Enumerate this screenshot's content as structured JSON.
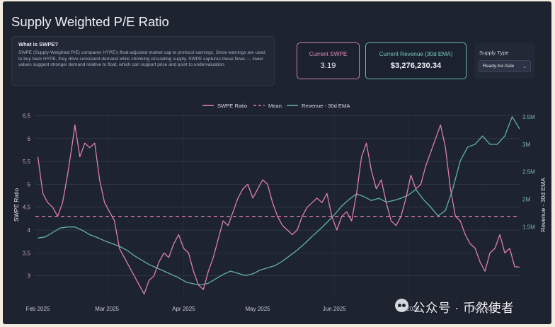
{
  "page": {
    "title": "Supply Weighted P/E Ratio"
  },
  "info": {
    "heading": "What is SWPE?",
    "body": "SWPE (Supply-Weighted P/E) compares HYPE's float-adjusted market cap to protocol earnings. Since earnings are used to buy back HYPE, they drive consistent demand while shrinking circulating supply. SWPE captures these flows — lower values suggest stronger demand relative to float, which can support price and point to undervaluation."
  },
  "cards": {
    "current_swpe_label": "Current SWPE",
    "current_swpe_value": "3.19",
    "current_revenue_label": "Current Revenue (30d EMA)",
    "current_revenue_value": "$3,276,230.34"
  },
  "supply_type": {
    "label": "Supply Type",
    "selected": "Ready-for-Sale"
  },
  "watermark": {
    "text": "公众号 · 币然使者"
  },
  "colors": {
    "swpe": "#de7fae",
    "mean": "#de7fae",
    "revenue": "#5fb3a7",
    "grid": "#3a4051",
    "tick_left": "#c9a2b8",
    "tick_right": "#79b8ad"
  },
  "chart_data": {
    "type": "line",
    "x_range": [
      "2025-01-31",
      "2025-08-15"
    ],
    "xticks": [
      {
        "label": "Feb 2025",
        "date": "2025-02-01"
      },
      {
        "label": "Mar 2025",
        "date": "2025-03-01"
      },
      {
        "label": "Apr 2025",
        "date": "2025-04-01"
      },
      {
        "label": "May 2025",
        "date": "2025-05-01"
      },
      {
        "label": "Jun 2025",
        "date": "2025-06-01"
      },
      {
        "label": "Jul 2025",
        "date": "2025-07-01"
      },
      {
        "label": "Aug 2025",
        "date": "2025-08-01"
      }
    ],
    "y_left": {
      "label": "SWPE Ratio",
      "range": [
        2.5,
        6.6
      ],
      "ticks": [
        3,
        3.5,
        4,
        4.5,
        5,
        5.5,
        6,
        6.5
      ]
    },
    "y_right": {
      "label": "Revenue - 30d EMA",
      "range": [
        200000,
        3600000
      ],
      "ticks": [
        {
          "v": 1500000,
          "label": "1.5M"
        },
        {
          "v": 2000000,
          "label": "2M"
        },
        {
          "v": 2500000,
          "label": "2.5M"
        },
        {
          "v": 3000000,
          "label": "3M"
        },
        {
          "v": 3500000,
          "label": "3.5M"
        }
      ]
    },
    "legend": {
      "placement": "top-center"
    },
    "grid": true,
    "mean": 4.3,
    "series": [
      {
        "name": "SWPE Ratio",
        "axis": "left",
        "points": [
          [
            "2025-02-01",
            5.6
          ],
          [
            "2025-02-03",
            4.8
          ],
          [
            "2025-02-05",
            4.6
          ],
          [
            "2025-02-07",
            4.5
          ],
          [
            "2025-02-09",
            4.3
          ],
          [
            "2025-02-11",
            4.6
          ],
          [
            "2025-02-13",
            5.2
          ],
          [
            "2025-02-15",
            5.9
          ],
          [
            "2025-02-16",
            6.3
          ],
          [
            "2025-02-18",
            5.6
          ],
          [
            "2025-02-20",
            5.9
          ],
          [
            "2025-02-22",
            5.8
          ],
          [
            "2025-02-24",
            5.9
          ],
          [
            "2025-02-26",
            5.1
          ],
          [
            "2025-02-28",
            4.6
          ],
          [
            "2025-03-02",
            4.4
          ],
          [
            "2025-03-04",
            4.2
          ],
          [
            "2025-03-06",
            3.6
          ],
          [
            "2025-03-08",
            3.4
          ],
          [
            "2025-03-10",
            3.2
          ],
          [
            "2025-03-12",
            3.0
          ],
          [
            "2025-03-14",
            2.8
          ],
          [
            "2025-03-16",
            2.6
          ],
          [
            "2025-03-18",
            2.9
          ],
          [
            "2025-03-20",
            3.0
          ],
          [
            "2025-03-22",
            3.3
          ],
          [
            "2025-03-24",
            3.5
          ],
          [
            "2025-03-26",
            3.4
          ],
          [
            "2025-03-28",
            3.7
          ],
          [
            "2025-03-30",
            3.9
          ],
          [
            "2025-04-01",
            3.6
          ],
          [
            "2025-04-03",
            3.5
          ],
          [
            "2025-04-05",
            3.1
          ],
          [
            "2025-04-07",
            2.8
          ],
          [
            "2025-04-09",
            2.7
          ],
          [
            "2025-04-11",
            3.1
          ],
          [
            "2025-04-13",
            3.4
          ],
          [
            "2025-04-15",
            3.8
          ],
          [
            "2025-04-17",
            4.2
          ],
          [
            "2025-04-19",
            4.1
          ],
          [
            "2025-04-21",
            4.4
          ],
          [
            "2025-04-23",
            4.7
          ],
          [
            "2025-04-25",
            4.9
          ],
          [
            "2025-04-27",
            5.0
          ],
          [
            "2025-04-29",
            4.7
          ],
          [
            "2025-05-01",
            4.9
          ],
          [
            "2025-05-03",
            5.1
          ],
          [
            "2025-05-05",
            5.0
          ],
          [
            "2025-05-07",
            4.6
          ],
          [
            "2025-05-09",
            4.3
          ],
          [
            "2025-05-11",
            4.1
          ],
          [
            "2025-05-13",
            4.0
          ],
          [
            "2025-05-15",
            3.9
          ],
          [
            "2025-05-17",
            4.0
          ],
          [
            "2025-05-19",
            4.3
          ],
          [
            "2025-05-21",
            4.5
          ],
          [
            "2025-05-23",
            4.6
          ],
          [
            "2025-05-25",
            4.7
          ],
          [
            "2025-05-27",
            4.6
          ],
          [
            "2025-05-29",
            4.8
          ],
          [
            "2025-05-31",
            4.3
          ],
          [
            "2025-06-02",
            4.0
          ],
          [
            "2025-06-04",
            4.3
          ],
          [
            "2025-06-06",
            4.4
          ],
          [
            "2025-06-08",
            4.2
          ],
          [
            "2025-06-10",
            4.8
          ],
          [
            "2025-06-12",
            5.6
          ],
          [
            "2025-06-14",
            5.9
          ],
          [
            "2025-06-16",
            5.3
          ],
          [
            "2025-06-18",
            4.9
          ],
          [
            "2025-06-20",
            5.1
          ],
          [
            "2025-06-22",
            4.6
          ],
          [
            "2025-06-24",
            4.2
          ],
          [
            "2025-06-26",
            4.1
          ],
          [
            "2025-06-28",
            4.3
          ],
          [
            "2025-06-30",
            4.7
          ],
          [
            "2025-07-02",
            5.2
          ],
          [
            "2025-07-04",
            4.9
          ],
          [
            "2025-07-06",
            5.0
          ],
          [
            "2025-07-08",
            5.4
          ],
          [
            "2025-07-10",
            5.7
          ],
          [
            "2025-07-12",
            6.0
          ],
          [
            "2025-07-14",
            6.3
          ],
          [
            "2025-07-16",
            5.8
          ],
          [
            "2025-07-18",
            4.9
          ],
          [
            "2025-07-20",
            4.3
          ],
          [
            "2025-07-22",
            4.2
          ],
          [
            "2025-07-24",
            3.9
          ],
          [
            "2025-07-26",
            3.7
          ],
          [
            "2025-07-28",
            3.6
          ],
          [
            "2025-07-30",
            3.3
          ],
          [
            "2025-08-01",
            3.1
          ],
          [
            "2025-08-03",
            3.5
          ],
          [
            "2025-08-05",
            3.6
          ],
          [
            "2025-08-07",
            3.9
          ],
          [
            "2025-08-09",
            3.5
          ],
          [
            "2025-08-11",
            3.6
          ],
          [
            "2025-08-13",
            3.2
          ],
          [
            "2025-08-15",
            3.19
          ]
        ]
      },
      {
        "name": "Mean",
        "axis": "left",
        "style": "dashed"
      },
      {
        "name": "Revenue - 30d EMA",
        "axis": "right",
        "points": [
          [
            "2025-02-01",
            1300000
          ],
          [
            "2025-02-04",
            1320000
          ],
          [
            "2025-02-07",
            1400000
          ],
          [
            "2025-02-10",
            1480000
          ],
          [
            "2025-02-13",
            1500000
          ],
          [
            "2025-02-16",
            1500000
          ],
          [
            "2025-02-19",
            1440000
          ],
          [
            "2025-02-22",
            1360000
          ],
          [
            "2025-02-25",
            1310000
          ],
          [
            "2025-02-28",
            1250000
          ],
          [
            "2025-03-03",
            1200000
          ],
          [
            "2025-03-06",
            1150000
          ],
          [
            "2025-03-09",
            1080000
          ],
          [
            "2025-03-12",
            980000
          ],
          [
            "2025-03-15",
            900000
          ],
          [
            "2025-03-18",
            820000
          ],
          [
            "2025-03-21",
            760000
          ],
          [
            "2025-03-24",
            700000
          ],
          [
            "2025-03-27",
            640000
          ],
          [
            "2025-03-30",
            580000
          ],
          [
            "2025-04-02",
            500000
          ],
          [
            "2025-04-05",
            470000
          ],
          [
            "2025-04-08",
            450000
          ],
          [
            "2025-04-11",
            480000
          ],
          [
            "2025-04-14",
            560000
          ],
          [
            "2025-04-17",
            640000
          ],
          [
            "2025-04-20",
            700000
          ],
          [
            "2025-04-23",
            660000
          ],
          [
            "2025-04-26",
            620000
          ],
          [
            "2025-04-29",
            650000
          ],
          [
            "2025-05-02",
            720000
          ],
          [
            "2025-05-05",
            760000
          ],
          [
            "2025-05-08",
            800000
          ],
          [
            "2025-05-11",
            880000
          ],
          [
            "2025-05-14",
            980000
          ],
          [
            "2025-05-17",
            1080000
          ],
          [
            "2025-05-20",
            1200000
          ],
          [
            "2025-05-23",
            1330000
          ],
          [
            "2025-05-26",
            1450000
          ],
          [
            "2025-05-29",
            1580000
          ],
          [
            "2025-06-01",
            1720000
          ],
          [
            "2025-06-04",
            1880000
          ],
          [
            "2025-06-07",
            2000000
          ],
          [
            "2025-06-10",
            2100000
          ],
          [
            "2025-06-13",
            2050000
          ],
          [
            "2025-06-16",
            1980000
          ],
          [
            "2025-06-19",
            2020000
          ],
          [
            "2025-06-22",
            1950000
          ],
          [
            "2025-06-25",
            1980000
          ],
          [
            "2025-06-28",
            2020000
          ],
          [
            "2025-07-01",
            2080000
          ],
          [
            "2025-07-04",
            2180000
          ],
          [
            "2025-07-07",
            2000000
          ],
          [
            "2025-07-10",
            1860000
          ],
          [
            "2025-07-13",
            1700000
          ],
          [
            "2025-07-16",
            1800000
          ],
          [
            "2025-07-19",
            2200000
          ],
          [
            "2025-07-22",
            2700000
          ],
          [
            "2025-07-25",
            2950000
          ],
          [
            "2025-07-28",
            3000000
          ],
          [
            "2025-07-31",
            3150000
          ],
          [
            "2025-08-03",
            3000000
          ],
          [
            "2025-08-06",
            3000000
          ],
          [
            "2025-08-09",
            3150000
          ],
          [
            "2025-08-12",
            3500000
          ],
          [
            "2025-08-15",
            3276230
          ]
        ]
      }
    ]
  }
}
